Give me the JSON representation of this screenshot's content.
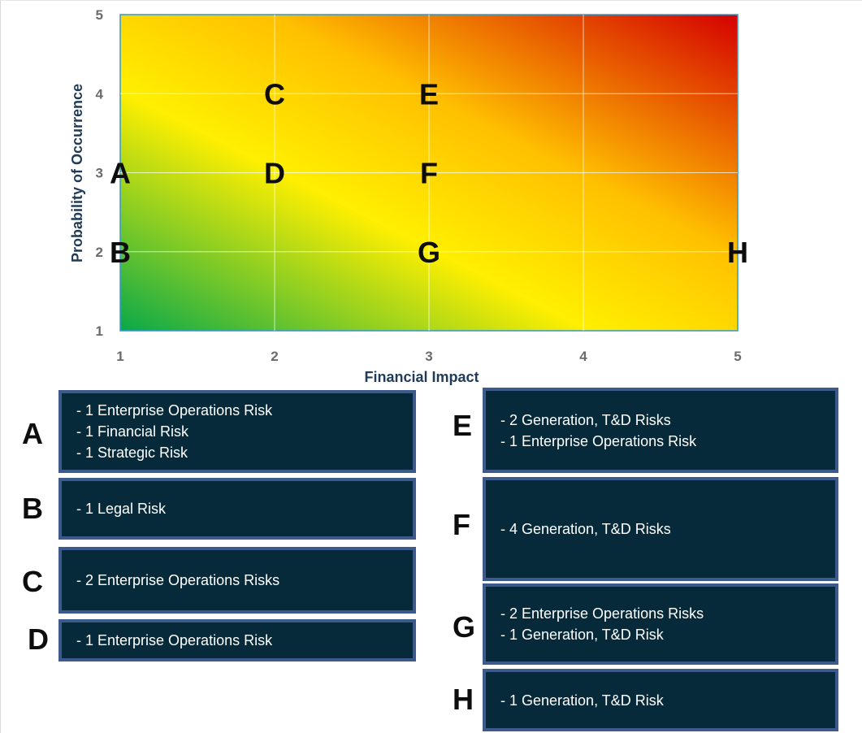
{
  "chart_data": {
    "type": "scatter",
    "xlabel": "Financial Impact",
    "ylabel": "Probability of Occurrence",
    "xlim": [
      1,
      5
    ],
    "ylim": [
      1,
      5
    ],
    "x_ticks": [
      "1",
      "2",
      "3",
      "4",
      "5"
    ],
    "y_ticks": [
      "1",
      "2",
      "3",
      "4",
      "5"
    ],
    "grid": true,
    "background": "heatmap gradient green (low) to yellow to red (high)",
    "colors": {
      "low": "#0aa84a",
      "mid": "#ffef00",
      "high": "#d40000"
    },
    "points": [
      {
        "label": "A",
        "x": 1,
        "y": 3
      },
      {
        "label": "B",
        "x": 1,
        "y": 2
      },
      {
        "label": "C",
        "x": 2,
        "y": 4
      },
      {
        "label": "D",
        "x": 2,
        "y": 3
      },
      {
        "label": "E",
        "x": 3,
        "y": 4
      },
      {
        "label": "F",
        "x": 3,
        "y": 3
      },
      {
        "label": "G",
        "x": 3,
        "y": 2
      },
      {
        "label": "H",
        "x": 5,
        "y": 2
      }
    ]
  },
  "legend": {
    "box_color": "#072a3a",
    "border_color": "#3d5a8c",
    "items": [
      {
        "letter": "A",
        "lines": [
          "- 1 Enterprise Operations Risk",
          "- 1 Financial Risk",
          "- 1 Strategic Risk"
        ]
      },
      {
        "letter": "B",
        "lines": [
          "- 1 Legal Risk"
        ]
      },
      {
        "letter": "C",
        "lines": [
          "- 2 Enterprise Operations Risks"
        ]
      },
      {
        "letter": "D",
        "lines": [
          "- 1 Enterprise Operations Risk"
        ]
      },
      {
        "letter": "E",
        "lines": [
          "- 2 Generation, T&D Risks",
          "- 1 Enterprise Operations Risk"
        ]
      },
      {
        "letter": "F",
        "lines": [
          "- 4 Generation, T&D Risks"
        ]
      },
      {
        "letter": "G",
        "lines": [
          "- 2 Enterprise Operations Risks",
          "- 1 Generation, T&D Risk"
        ]
      },
      {
        "letter": "H",
        "lines": [
          "- 1 Generation, T&D Risk"
        ]
      }
    ]
  }
}
